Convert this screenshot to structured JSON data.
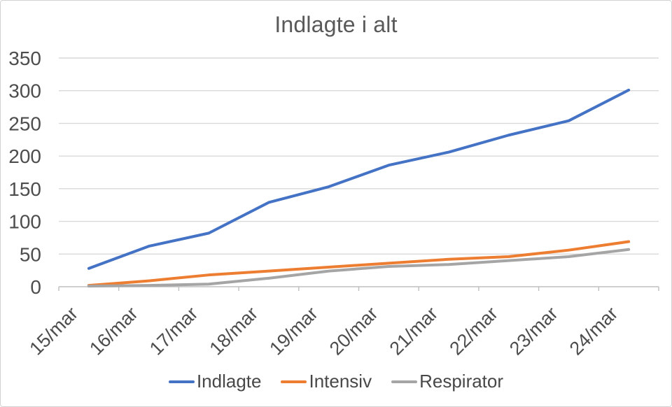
{
  "chart_data": {
    "type": "line",
    "title": "Indlagte i alt",
    "categories": [
      "15/mar",
      "16/mar",
      "17/mar",
      "18/mar",
      "19/mar",
      "20/mar",
      "21/mar",
      "22/mar",
      "23/mar",
      "24/mar"
    ],
    "series": [
      {
        "name": "Indlagte",
        "color": "#4472C4",
        "values": [
          28,
          62,
          82,
          129,
          153,
          186,
          206,
          232,
          254,
          301
        ]
      },
      {
        "name": "Intensiv",
        "color": "#ED7D31",
        "values": [
          2,
          9,
          18,
          24,
          30,
          36,
          42,
          46,
          56,
          69
        ]
      },
      {
        "name": "Respirator",
        "color": "#A5A5A5",
        "values": [
          1,
          2,
          4,
          13,
          24,
          31,
          34,
          40,
          46,
          57
        ]
      }
    ],
    "xlabel": "",
    "ylabel": "",
    "ylim": [
      0,
      350
    ],
    "yticks": [
      0,
      50,
      100,
      150,
      200,
      250,
      300,
      350
    ],
    "grid": "horizontal",
    "legend_position": "bottom"
  },
  "colors": {
    "gridline": "#D9D9D9",
    "axis_line": "#BFBFBF",
    "title_text": "#595959",
    "axis_text": "#4D4D4D",
    "border": "#D2D2D2",
    "background": "#FFFFFF"
  }
}
